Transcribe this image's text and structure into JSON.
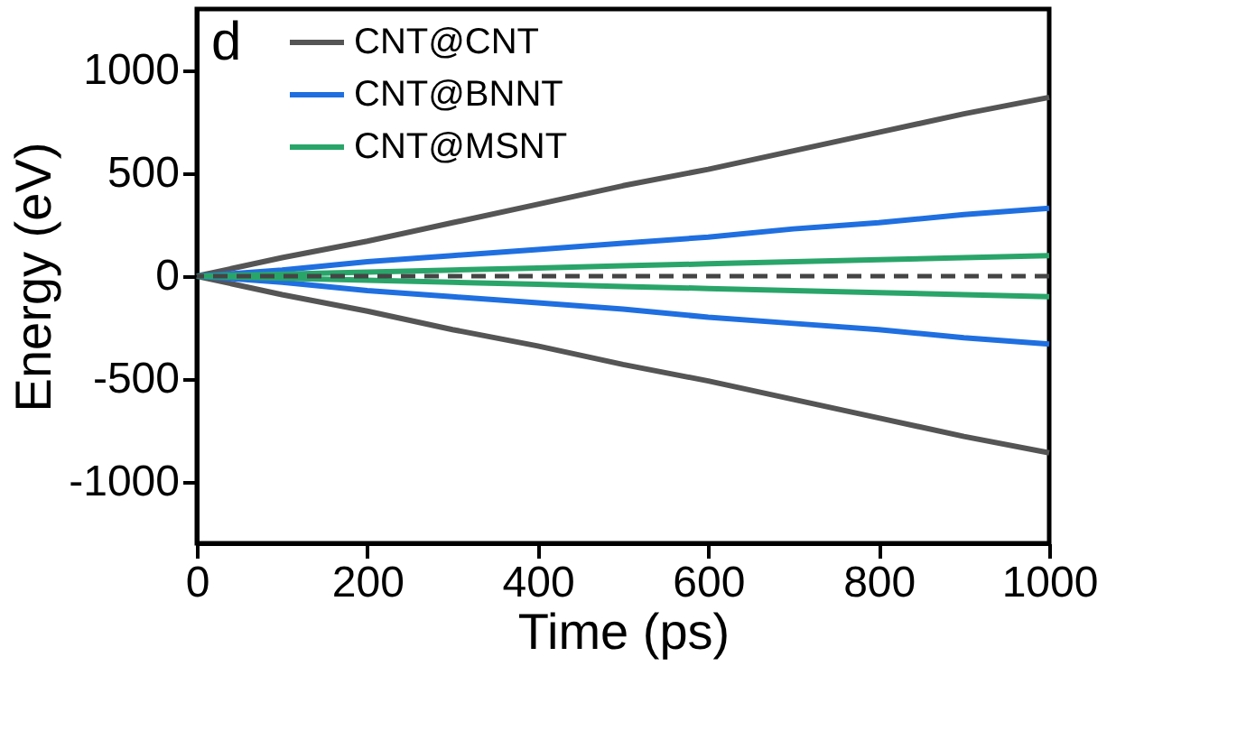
{
  "chart_data": {
    "type": "line",
    "xlabel": "Time (ps)",
    "ylabel": "Energy (eV)",
    "x": [
      0,
      100,
      200,
      300,
      400,
      500,
      600,
      700,
      800,
      900,
      1000
    ],
    "series": [
      {
        "name": "CNT@CNT",
        "color": "#555555",
        "values": [
          0,
          90,
          170,
          260,
          350,
          440,
          520,
          610,
          700,
          790,
          870
        ]
      },
      {
        "color": "#555555",
        "values": [
          0,
          -90,
          -170,
          -260,
          -340,
          -430,
          -510,
          -600,
          -690,
          -780,
          -860
        ]
      },
      {
        "name": "CNT@BNNT",
        "color": "#1f6fe0",
        "values": [
          0,
          30,
          70,
          100,
          130,
          160,
          190,
          230,
          260,
          300,
          330
        ]
      },
      {
        "color": "#1f6fe0",
        "values": [
          0,
          -30,
          -70,
          -100,
          -130,
          -160,
          -200,
          -230,
          -260,
          -300,
          -330
        ]
      },
      {
        "name": "CNT@MSNT",
        "color": "#2aa56a",
        "values": [
          0,
          10,
          20,
          30,
          40,
          50,
          60,
          70,
          80,
          90,
          100
        ]
      },
      {
        "color": "#2aa56a",
        "values": [
          0,
          -10,
          -20,
          -30,
          -40,
          -50,
          -60,
          -70,
          -80,
          -90,
          -100
        ]
      }
    ],
    "xlim": [
      0,
      1000
    ],
    "xticks": [
      0,
      200,
      400,
      600,
      800,
      1000
    ],
    "ylim": [
      -1300,
      1300
    ],
    "yticks": [
      -1000,
      -500,
      0,
      500,
      1000
    ],
    "ref_lines": [
      {
        "axis": "y",
        "value": 0,
        "color": "#444444",
        "line_style": "dashed"
      }
    ],
    "annotations": [
      "d"
    ],
    "grid": false,
    "legend": "top left",
    "marker": "none",
    "line_style": "solid"
  }
}
